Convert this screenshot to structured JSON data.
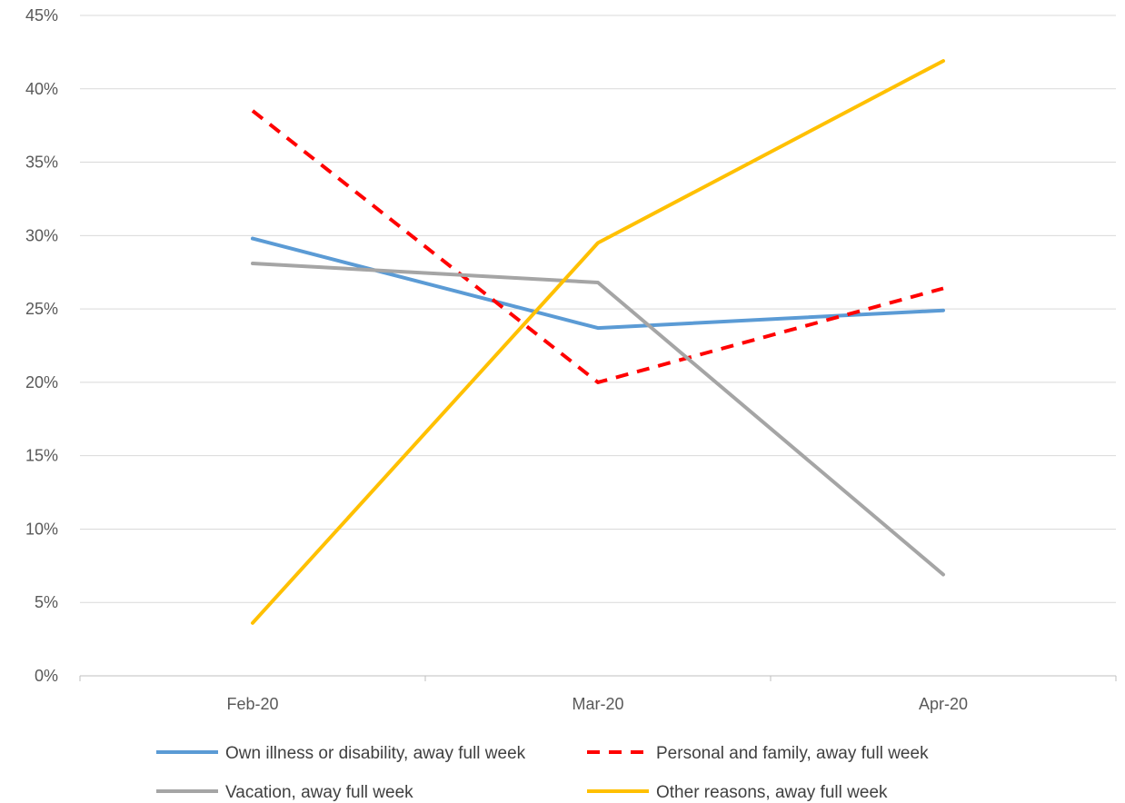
{
  "chart_data": {
    "type": "line",
    "title": "",
    "xlabel": "",
    "ylabel": "",
    "categories": [
      "Feb-20",
      "Mar-20",
      "Apr-20"
    ],
    "y_ticks": [
      "0%",
      "5%",
      "10%",
      "15%",
      "20%",
      "25%",
      "30%",
      "35%",
      "40%",
      "45%"
    ],
    "ylim": [
      0,
      45
    ],
    "y_unit": "%",
    "grid": "horizontal",
    "legend_position": "bottom",
    "series": [
      {
        "name": "Own illness or disability, away full week",
        "values": [
          29.8,
          23.7,
          24.9
        ],
        "color": "#5B9BD5",
        "dash": "solid"
      },
      {
        "name": "Personal and family, away full week",
        "values": [
          38.5,
          20.0,
          26.4
        ],
        "color": "#FF0000",
        "dash": "dashed"
      },
      {
        "name": "Vacation, away full week",
        "values": [
          28.1,
          26.8,
          6.9
        ],
        "color": "#A5A5A5",
        "dash": "solid"
      },
      {
        "name": "Other reasons, away full week",
        "values": [
          3.6,
          29.5,
          41.9
        ],
        "color": "#FFC000",
        "dash": "solid"
      }
    ]
  }
}
